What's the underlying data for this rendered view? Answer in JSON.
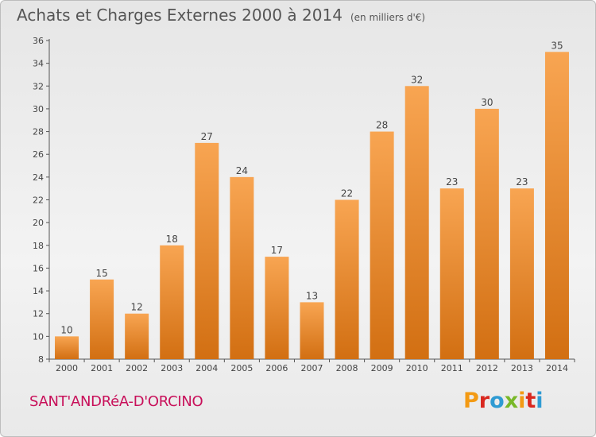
{
  "header": {
    "title": "Achats et Charges Externes 2000 à 2014",
    "unit": "(en milliers d'€)"
  },
  "footer": {
    "commune": "SANT'ANDRéA-D'ORCINO",
    "logo": [
      "P",
      "r",
      "o",
      "x",
      "i",
      "t",
      "i"
    ],
    "logo_colors": [
      "#f39a14",
      "#d9281f",
      "#2f9bd3",
      "#79b828",
      "#f39a14",
      "#d9281f",
      "#2f9bd3"
    ]
  },
  "chart_data": {
    "type": "bar",
    "title": "Achats et Charges Externes 2000 à 2014",
    "categories": [
      "2000",
      "2001",
      "2002",
      "2003",
      "2004",
      "2005",
      "2006",
      "2007",
      "2008",
      "2009",
      "2010",
      "2011",
      "2012",
      "2013",
      "2014"
    ],
    "values": [
      10,
      15,
      12,
      18,
      27,
      24,
      17,
      13,
      22,
      28,
      32,
      23,
      30,
      23,
      35
    ],
    "ylim": [
      8,
      36
    ],
    "yticks": [
      8,
      10,
      12,
      14,
      16,
      18,
      20,
      22,
      24,
      26,
      28,
      30,
      32,
      34,
      36
    ],
    "grid": false,
    "bar_color_top": "#f8a552",
    "bar_color_bottom": "#d26f12"
  }
}
